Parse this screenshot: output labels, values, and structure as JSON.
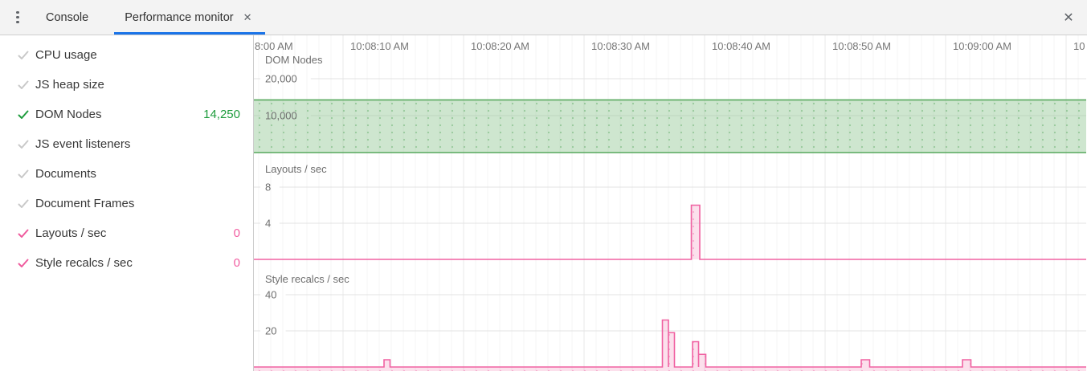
{
  "toolbar": {
    "tabs": [
      {
        "label": "Console",
        "active": false
      },
      {
        "label": "Performance monitor",
        "active": true,
        "closable": true
      }
    ],
    "tab_close_glyph": "✕",
    "panel_close_glyph": "✕",
    "menu_icon": "kebab-menu-icon",
    "accent_color": "#1a73e8"
  },
  "sidebar": {
    "items": [
      {
        "label": "CPU usage",
        "checked": false,
        "value": "",
        "color": "gray"
      },
      {
        "label": "JS heap size",
        "checked": false,
        "value": "",
        "color": "gray"
      },
      {
        "label": "DOM Nodes",
        "checked": true,
        "value": "14,250",
        "color": "green"
      },
      {
        "label": "JS event listeners",
        "checked": false,
        "value": "",
        "color": "gray"
      },
      {
        "label": "Documents",
        "checked": false,
        "value": "",
        "color": "gray"
      },
      {
        "label": "Document Frames",
        "checked": false,
        "value": "",
        "color": "gray"
      },
      {
        "label": "Layouts / sec",
        "checked": true,
        "value": "0",
        "color": "pink"
      },
      {
        "label": "Style recalcs / sec",
        "checked": true,
        "value": "0",
        "color": "pink"
      }
    ]
  },
  "colors": {
    "green": "#1e9c3d",
    "green_line": "#57a85d",
    "green_fill": "rgba(138,195,140,0.42)",
    "green_dot": "rgba(87,168,93,0.45)",
    "pink": "#ef5b9e",
    "pink_line": "#f062a2",
    "pink_fill": "rgba(246,165,200,0.35)",
    "pink_dot": "rgba(240,98,162,0.4)",
    "grid_major": "#e9e9e9",
    "grid_minor": "#f5f5f5",
    "grid_h": "#e3e3e3",
    "axis_text": "#757575",
    "chart_text": "#6e6e6e"
  },
  "chart_data": {
    "type": "area",
    "x_axis": {
      "unit": "time",
      "seconds_per_division": 10,
      "labels": [
        {
          "text": "8:00 AM",
          "t": 0
        },
        {
          "text": "10:08:10 AM",
          "t": 10
        },
        {
          "text": "10:08:20 AM",
          "t": 20
        },
        {
          "text": "10:08:30 AM",
          "t": 30
        },
        {
          "text": "10:08:40 AM",
          "t": 40
        },
        {
          "text": "10:08:50 AM",
          "t": 50
        },
        {
          "text": "10:09:00 AM",
          "t": 60
        },
        {
          "text": "10",
          "t": 70
        }
      ]
    },
    "charts": [
      {
        "title": "DOM Nodes",
        "type": "area",
        "series_color": "green",
        "yticks": [
          {
            "value": 20000,
            "label": "20,000"
          },
          {
            "value": 10000,
            "label": "10,000"
          }
        ],
        "ylim": [
          0,
          22000
        ],
        "current_value": 14250,
        "series": {
          "kind": "constant",
          "value": 14250
        }
      },
      {
        "title": "Layouts / sec",
        "type": "area-step",
        "series_color": "pink",
        "yticks": [
          {
            "value": 8,
            "label": "8"
          },
          {
            "value": 4,
            "label": "4"
          }
        ],
        "ylim": [
          0,
          10
        ],
        "current_value": 0,
        "series": {
          "kind": "step",
          "baseline": 0,
          "segments": [
            {
              "t0": 38.9,
              "t1": 39.6,
              "v": 6
            }
          ]
        }
      },
      {
        "title": "Style recalcs / sec",
        "type": "area-step",
        "series_color": "pink",
        "yticks": [
          {
            "value": 40,
            "label": "40"
          },
          {
            "value": 20,
            "label": "20"
          }
        ],
        "ylim": [
          0,
          44
        ],
        "current_value": 0,
        "series": {
          "kind": "step",
          "baseline": 0,
          "segments": [
            {
              "t0": 13.4,
              "t1": 13.9,
              "v": 4
            },
            {
              "t0": 36.5,
              "t1": 37.0,
              "v": 26
            },
            {
              "t0": 37.0,
              "t1": 37.5,
              "v": 19
            },
            {
              "t0": 39.0,
              "t1": 39.5,
              "v": 14
            },
            {
              "t0": 39.5,
              "t1": 40.1,
              "v": 7
            },
            {
              "t0": 53.0,
              "t1": 53.7,
              "v": 4
            },
            {
              "t0": 61.4,
              "t1": 62.1,
              "v": 4
            }
          ]
        }
      }
    ]
  }
}
